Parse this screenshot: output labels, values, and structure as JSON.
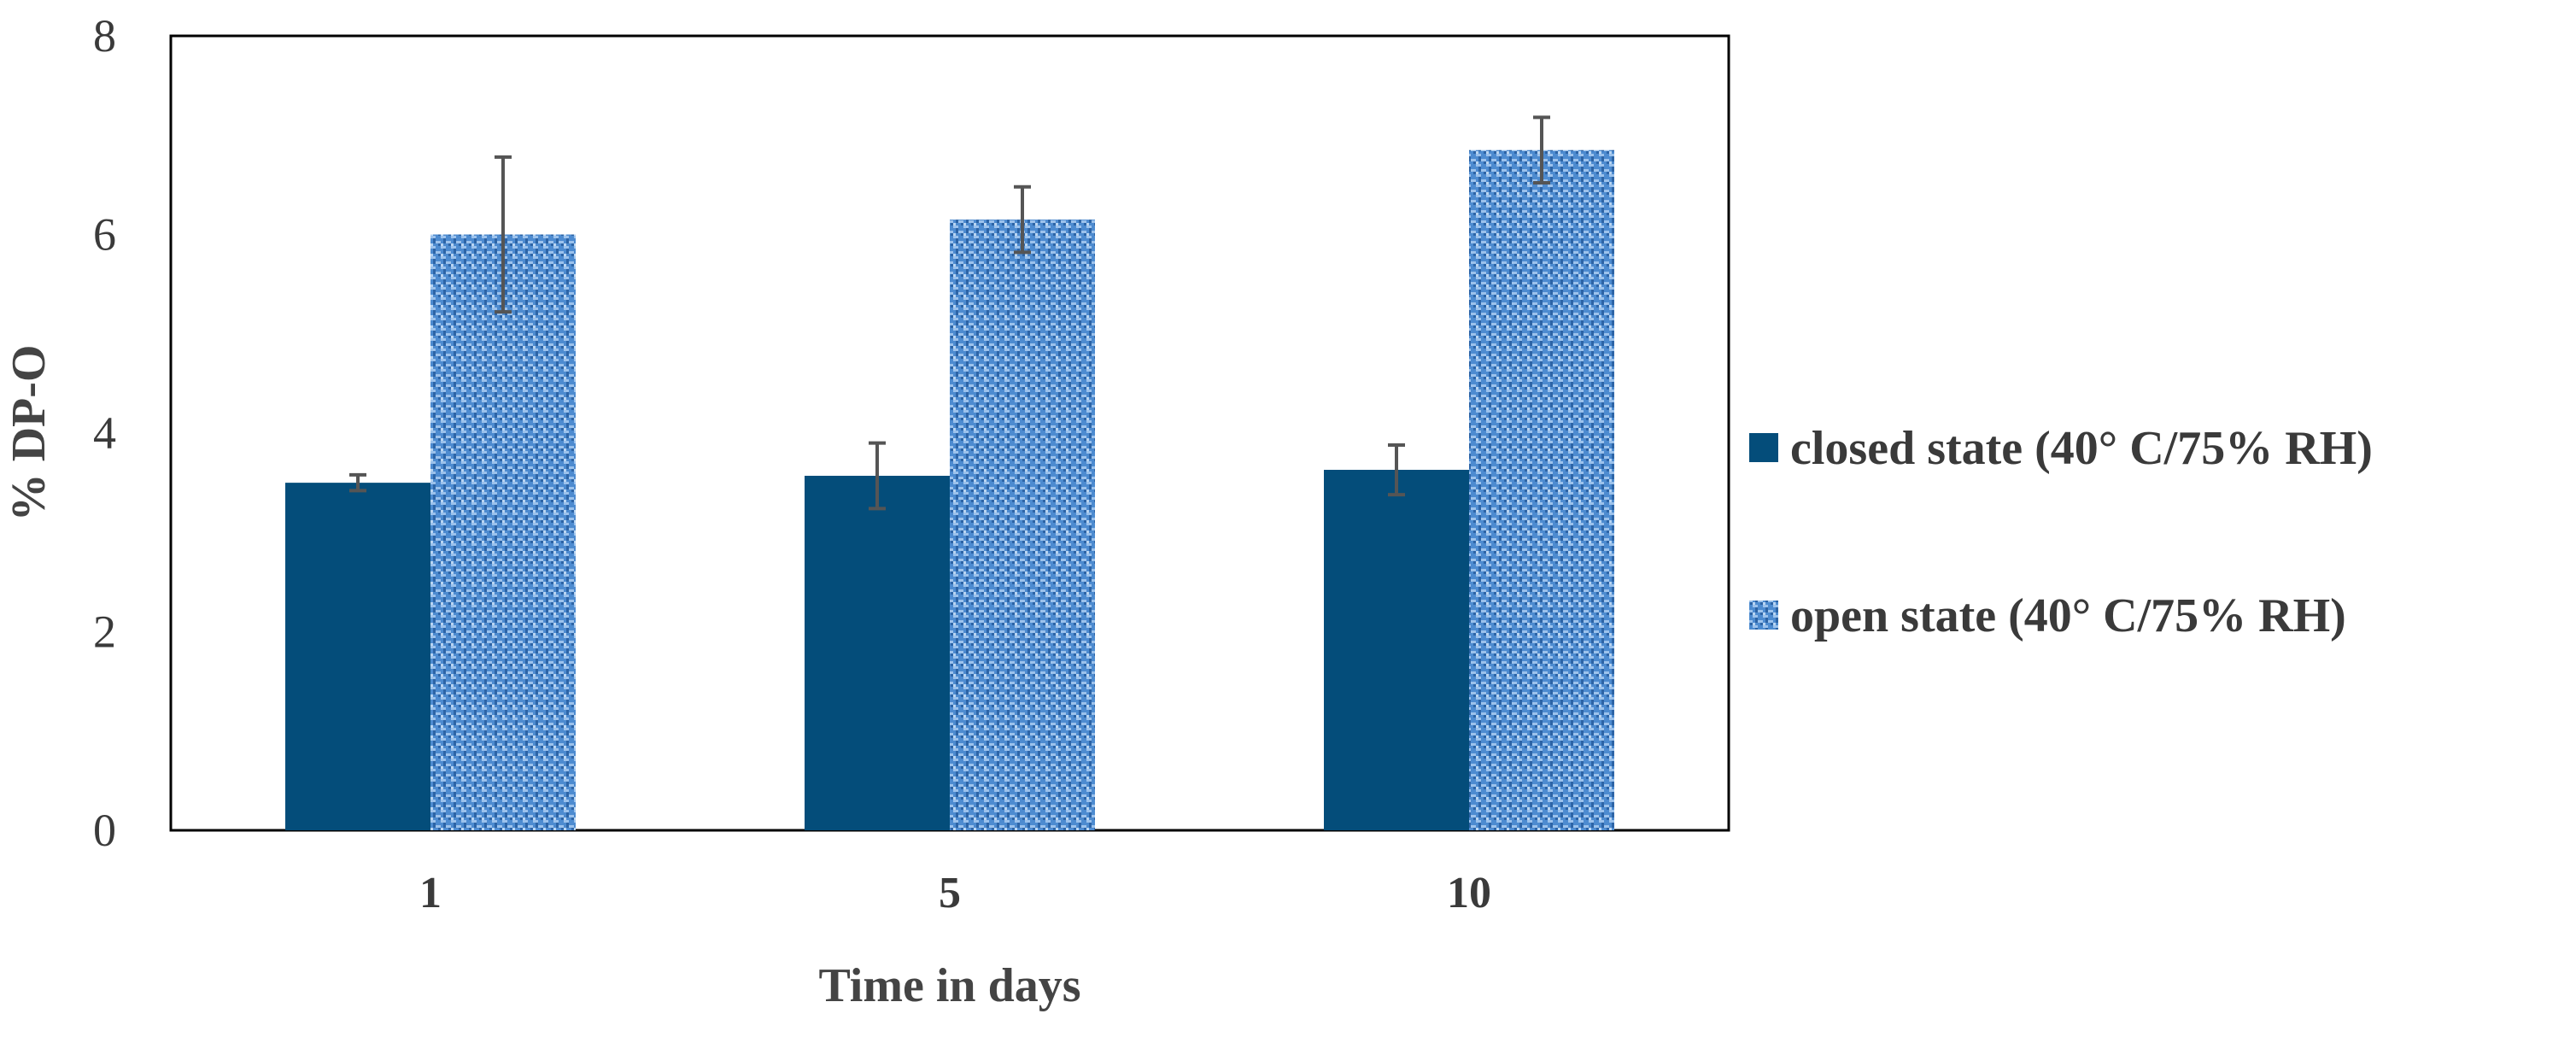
{
  "chart_data": {
    "type": "bar",
    "categories": [
      "1",
      "5",
      "10"
    ],
    "series": [
      {
        "name": "closed state (40° C/75% RH)",
        "values": [
          3.5,
          3.57,
          3.63
        ],
        "error": [
          0.08,
          0.33,
          0.25
        ],
        "color": "#044d7a",
        "pattern": "solid"
      },
      {
        "name": "open state (40° C/75% RH)",
        "values": [
          6.0,
          6.15,
          6.85
        ],
        "error": [
          0.78,
          0.33,
          0.33
        ],
        "color": "#3f7ec4",
        "pattern": "textured"
      }
    ],
    "xlabel": "Time in days",
    "ylabel": "% DP-O",
    "ylim": [
      0,
      8
    ],
    "yticks": [
      "0",
      "2",
      "4",
      "6",
      "8"
    ],
    "grid": false,
    "legend_position": "right",
    "error_bar_color": "#555555"
  }
}
